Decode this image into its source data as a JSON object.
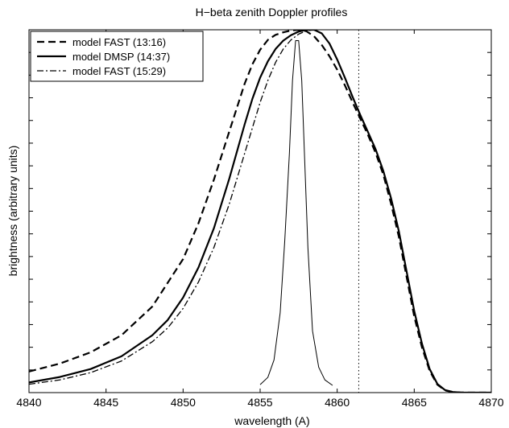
{
  "chart_data": {
    "type": "line",
    "title": "H−beta zenith Doppler profiles",
    "xlabel": "wavelength (A)",
    "ylabel": "brightness (arbitrary units)",
    "xlim": [
      4840,
      4870
    ],
    "ylim": [
      0,
      1
    ],
    "x_ticks": [
      4840,
      4845,
      4850,
      4855,
      4860,
      4865,
      4870
    ],
    "x_tick_labels": [
      "4840",
      "4845",
      "4850",
      "4855",
      "4860",
      "4865",
      "4870"
    ],
    "y_tick_count": 16,
    "y_tick_labels_shown": false,
    "grid": false,
    "legend_position": "top-left",
    "legend": [
      {
        "series": 0,
        "label": "model FAST (13:16)"
      },
      {
        "series": 1,
        "label": "model DMSP (14:37)"
      },
      {
        "series": 2,
        "label": "model FAST (15:29)"
      }
    ],
    "series": [
      {
        "name": "model FAST (13:16)",
        "style": "dashed",
        "color": "#000000",
        "x": [
          4840,
          4842,
          4844,
          4846,
          4848,
          4850,
          4851,
          4852,
          4853,
          4854,
          4854.5,
          4855,
          4855.5,
          4856,
          4856.5,
          4857,
          4857.5,
          4858,
          4858.5,
          4859,
          4859.5,
          4860,
          4860.5,
          4861,
          4861.5,
          4862,
          4862.5,
          4863,
          4863.5,
          4864,
          4864.5,
          4865,
          4865.5,
          4866,
          4866.5,
          4867,
          4867.5,
          4868,
          4869,
          4870
        ],
        "y": [
          0.058,
          0.08,
          0.111,
          0.158,
          0.237,
          0.368,
          0.467,
          0.587,
          0.72,
          0.852,
          0.905,
          0.945,
          0.972,
          0.986,
          0.993,
          0.998,
          1.0,
          0.996,
          0.982,
          0.958,
          0.927,
          0.89,
          0.847,
          0.8,
          0.755,
          0.71,
          0.66,
          0.6,
          0.52,
          0.43,
          0.32,
          0.21,
          0.125,
          0.06,
          0.022,
          0.006,
          0.0015,
          0.0003,
          0.0,
          0.0
        ]
      },
      {
        "name": "model DMSP (14:37)",
        "style": "solid",
        "color": "#000000",
        "x": [
          4840,
          4842,
          4844,
          4846,
          4848,
          4849,
          4850,
          4851,
          4852,
          4853,
          4854,
          4854.5,
          4855,
          4855.5,
          4856,
          4856.5,
          4857,
          4857.5,
          4858,
          4858.5,
          4859,
          4859.5,
          4860,
          4860.5,
          4861,
          4861.5,
          4862,
          4862.5,
          4863,
          4863.5,
          4864,
          4864.5,
          4865,
          4865.5,
          4866,
          4866.5,
          4867,
          4867.5,
          4868,
          4869,
          4870
        ],
        "y": [
          0.028,
          0.043,
          0.065,
          0.1,
          0.158,
          0.2,
          0.262,
          0.345,
          0.453,
          0.59,
          0.74,
          0.81,
          0.868,
          0.913,
          0.947,
          0.97,
          0.985,
          0.995,
          1.0,
          1.0,
          0.99,
          0.962,
          0.918,
          0.868,
          0.815,
          0.765,
          0.718,
          0.67,
          0.61,
          0.535,
          0.445,
          0.335,
          0.225,
          0.135,
          0.065,
          0.024,
          0.007,
          0.0017,
          0.0003,
          0.0,
          0.0
        ]
      },
      {
        "name": "model FAST (15:29)",
        "style": "dash-dot",
        "color": "#000000",
        "x": [
          4840,
          4842,
          4844,
          4846,
          4848,
          4849,
          4850,
          4851,
          4852,
          4853,
          4854,
          4855,
          4855.5,
          4856,
          4856.5,
          4857,
          4857.5,
          4858,
          4858.5,
          4859,
          4859.5,
          4860,
          4860.5,
          4861,
          4861.5,
          4862,
          4862.5,
          4863,
          4863.5,
          4864,
          4864.5,
          4865,
          4865.5,
          4866,
          4866.5,
          4867,
          4867.5,
          4868,
          4869,
          4870
        ],
        "y": [
          0.023,
          0.035,
          0.055,
          0.087,
          0.14,
          0.178,
          0.232,
          0.305,
          0.4,
          0.52,
          0.66,
          0.8,
          0.86,
          0.91,
          0.947,
          0.972,
          0.988,
          0.997,
          1.0,
          0.99,
          0.962,
          0.918,
          0.868,
          0.815,
          0.765,
          0.718,
          0.67,
          0.61,
          0.535,
          0.445,
          0.335,
          0.225,
          0.135,
          0.065,
          0.024,
          0.007,
          0.0017,
          0.0003,
          0.0,
          0.0
        ]
      },
      {
        "name": "",
        "style": "thin-solid",
        "color": "#000000",
        "x": [
          4855.0,
          4855.5,
          4855.9,
          4856.3,
          4856.6,
          4856.9,
          4857.1,
          4857.3,
          4857.5,
          4857.7,
          4857.9,
          4858.1,
          4858.4,
          4858.8,
          4859.2,
          4859.7
        ],
        "y": [
          0.022,
          0.042,
          0.09,
          0.22,
          0.42,
          0.66,
          0.86,
          0.97,
          0.97,
          0.86,
          0.63,
          0.4,
          0.17,
          0.07,
          0.035,
          0.02
        ]
      }
    ],
    "vertical_lines": [
      {
        "x": 4861.4,
        "style": "dotted",
        "color": "#000000"
      }
    ]
  }
}
